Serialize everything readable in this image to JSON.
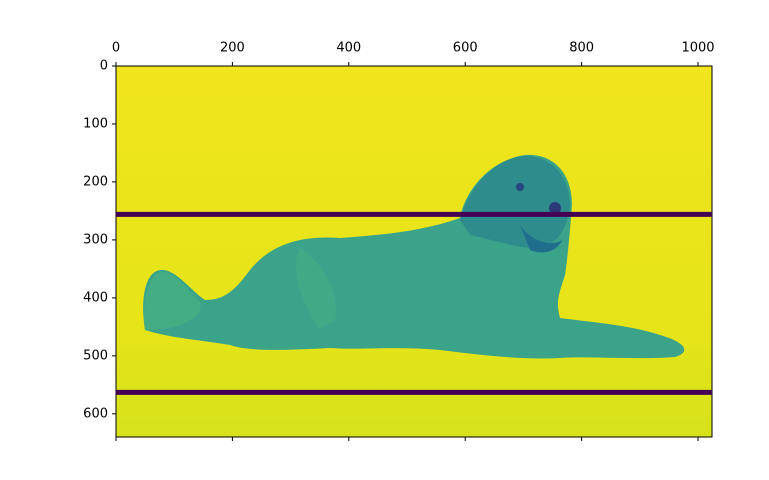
{
  "chart_data": {
    "type": "image",
    "xlim": [
      0,
      1024
    ],
    "xticks": [
      0,
      200,
      400,
      600,
      800,
      1000
    ],
    "ylim": [
      640,
      0
    ],
    "yticks": [
      0,
      100,
      200,
      300,
      400,
      500,
      600
    ],
    "hlines": [
      256,
      563
    ],
    "line_color": "#440154",
    "colormap": "viridis",
    "background_color": "#efe51c"
  }
}
